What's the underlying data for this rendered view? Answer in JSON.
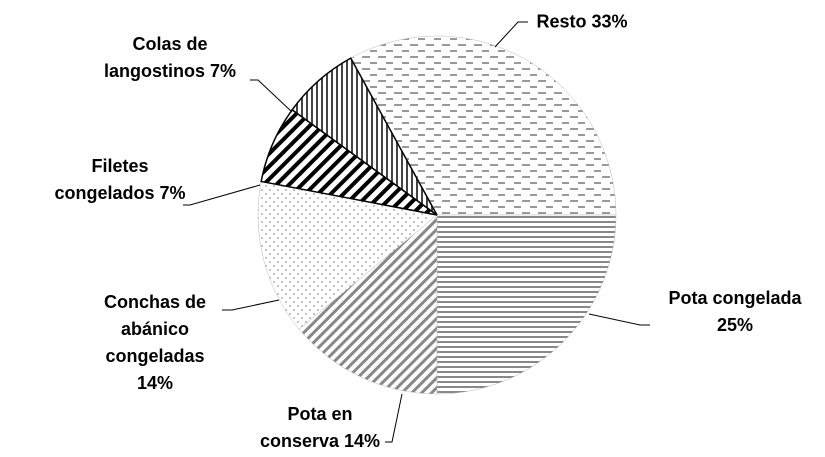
{
  "chart_data": {
    "type": "pie",
    "categories": [
      "Resto",
      "Pota congelada",
      "Pota en conserva",
      "Conchas de abánico congeladas",
      "Filetes congelados",
      "Colas de langostinos"
    ],
    "values": [
      33,
      25,
      14,
      14,
      7,
      7
    ],
    "value_labels": [
      "33%",
      "25%",
      "14%",
      "14%",
      "7%",
      "7%"
    ]
  }
}
